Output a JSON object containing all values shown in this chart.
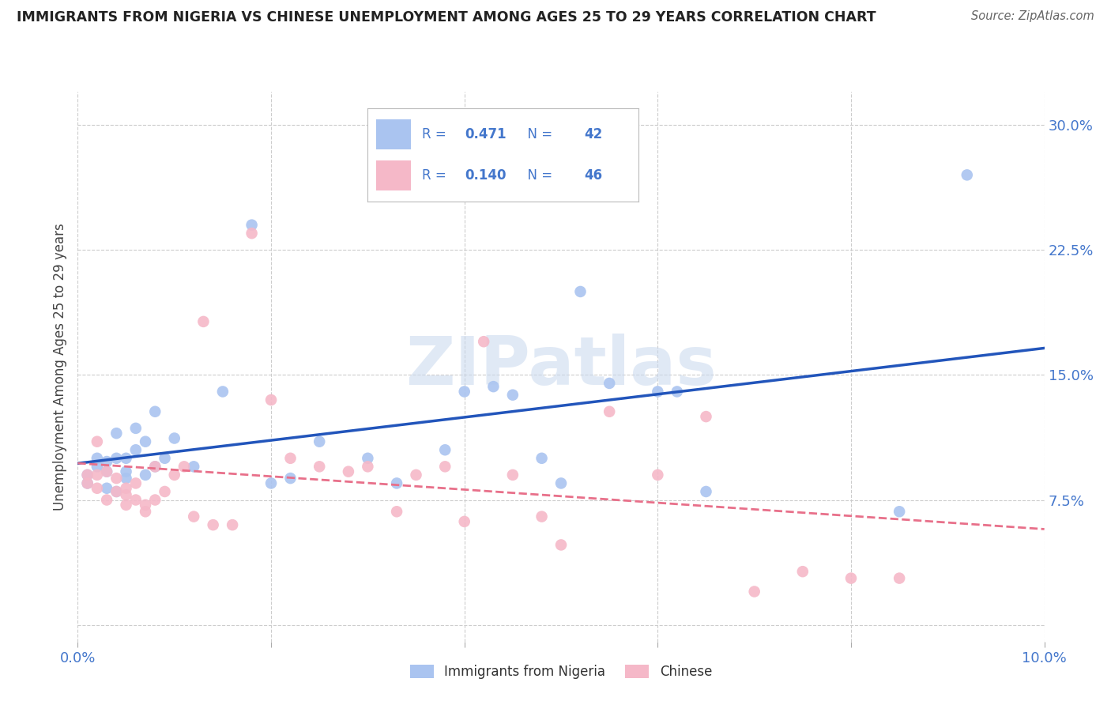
{
  "title": "IMMIGRANTS FROM NIGERIA VS CHINESE UNEMPLOYMENT AMONG AGES 25 TO 29 YEARS CORRELATION CHART",
  "source": "Source: ZipAtlas.com",
  "ylabel": "Unemployment Among Ages 25 to 29 years",
  "xlim": [
    0.0,
    0.1
  ],
  "ylim": [
    -0.01,
    0.32
  ],
  "xticks": [
    0.0,
    0.02,
    0.04,
    0.06,
    0.08,
    0.1
  ],
  "yticks": [
    0.0,
    0.075,
    0.15,
    0.225,
    0.3
  ],
  "nigeria_R": 0.471,
  "nigeria_N": 42,
  "chinese_R": 0.14,
  "chinese_N": 46,
  "nigeria_color": "#aac4f0",
  "chinese_color": "#f5b8c8",
  "nigeria_line_color": "#2255bb",
  "chinese_line_color": "#e8708a",
  "legend_text_color": "#4477cc",
  "background_color": "#ffffff",
  "grid_color": "#cccccc",
  "watermark": "ZIPatlas",
  "title_color": "#222222",
  "source_color": "#666666",
  "ylabel_color": "#444444",
  "tick_label_color": "#4477cc",
  "nigeria_x": [
    0.001,
    0.001,
    0.002,
    0.002,
    0.003,
    0.003,
    0.003,
    0.004,
    0.004,
    0.004,
    0.005,
    0.005,
    0.005,
    0.006,
    0.006,
    0.007,
    0.007,
    0.008,
    0.008,
    0.009,
    0.01,
    0.012,
    0.015,
    0.018,
    0.02,
    0.022,
    0.025,
    0.03,
    0.033,
    0.038,
    0.04,
    0.043,
    0.045,
    0.048,
    0.05,
    0.052,
    0.055,
    0.06,
    0.062,
    0.065,
    0.085,
    0.092
  ],
  "nigeria_y": [
    0.085,
    0.09,
    0.095,
    0.1,
    0.082,
    0.092,
    0.098,
    0.08,
    0.1,
    0.115,
    0.088,
    0.092,
    0.1,
    0.105,
    0.118,
    0.09,
    0.11,
    0.095,
    0.128,
    0.1,
    0.112,
    0.095,
    0.14,
    0.24,
    0.085,
    0.088,
    0.11,
    0.1,
    0.085,
    0.105,
    0.14,
    0.143,
    0.138,
    0.1,
    0.085,
    0.2,
    0.145,
    0.14,
    0.14,
    0.08,
    0.068,
    0.27
  ],
  "chinese_x": [
    0.001,
    0.001,
    0.002,
    0.002,
    0.002,
    0.003,
    0.003,
    0.004,
    0.004,
    0.005,
    0.005,
    0.005,
    0.006,
    0.006,
    0.007,
    0.007,
    0.008,
    0.008,
    0.009,
    0.01,
    0.011,
    0.012,
    0.013,
    0.014,
    0.016,
    0.018,
    0.02,
    0.022,
    0.025,
    0.028,
    0.03,
    0.033,
    0.035,
    0.038,
    0.04,
    0.042,
    0.045,
    0.048,
    0.05,
    0.055,
    0.06,
    0.065,
    0.07,
    0.075,
    0.08,
    0.085
  ],
  "chinese_y": [
    0.085,
    0.09,
    0.082,
    0.09,
    0.11,
    0.075,
    0.092,
    0.08,
    0.088,
    0.072,
    0.078,
    0.082,
    0.075,
    0.085,
    0.072,
    0.068,
    0.075,
    0.095,
    0.08,
    0.09,
    0.095,
    0.065,
    0.182,
    0.06,
    0.06,
    0.235,
    0.135,
    0.1,
    0.095,
    0.092,
    0.095,
    0.068,
    0.09,
    0.095,
    0.062,
    0.17,
    0.09,
    0.065,
    0.048,
    0.128,
    0.09,
    0.125,
    0.02,
    0.032,
    0.028,
    0.028
  ]
}
